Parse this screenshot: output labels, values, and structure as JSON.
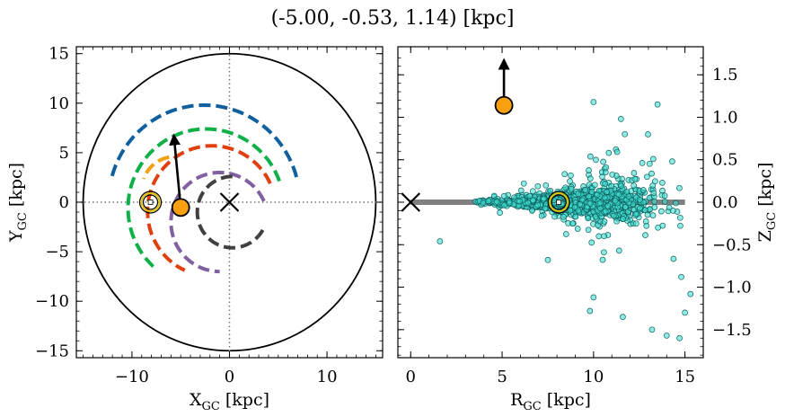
{
  "figure": {
    "title": "(-5.00, -0.53, 1.14) [kpc]"
  },
  "chart_data": [
    {
      "type": "scatter",
      "panel": "left",
      "xlabel_main": "X",
      "xlabel_sub": "GC",
      "xlabel_unit": " [kpc]",
      "ylabel_main": "Y",
      "ylabel_sub": "GC",
      "ylabel_unit": " [kpc]",
      "xlim": [
        -15.7,
        15.7
      ],
      "ylim": [
        -15.7,
        15.7
      ],
      "xticks": [
        -10,
        0,
        10
      ],
      "xtick_labels": [
        "−10",
        "0",
        "10"
      ],
      "yticks": [
        -15,
        -10,
        -5,
        0,
        5,
        10,
        15
      ],
      "ytick_labels": [
        "−15",
        "−10",
        "−5",
        "0",
        "5",
        "10",
        "15"
      ],
      "grid": false,
      "galaxy_circle_radius": 15,
      "crosshair_lines": {
        "x": 0,
        "y": 0
      },
      "galactic_center": {
        "x": 0,
        "y": 0
      },
      "sun": {
        "x": -8.1,
        "y": 0.0
      },
      "object": {
        "x": -5.0,
        "y": -0.53
      },
      "velocity_arrow": {
        "from": [
          -5.0,
          -0.53
        ],
        "to": [
          -5.7,
          6.7
        ]
      },
      "spiral_arms": [
        {
          "color": "#1060a0",
          "center_radius": 9.8,
          "center": [
            -2.6,
            0.0
          ],
          "theta_start_deg": 15,
          "theta_end_deg": 165
        },
        {
          "color": "#10b048",
          "center_radius": 8.0,
          "center": [
            -2.4,
            -0.6
          ],
          "theta_start_deg": 20,
          "theta_end_deg": 230
        },
        {
          "color": "#f0a010",
          "center_radius": 3.4,
          "center": [
            -5.6,
            1.2
          ],
          "theta_start_deg": 100,
          "theta_end_deg": 160
        },
        {
          "color": "#e04010",
          "center_radius": 6.6,
          "center": [
            -1.8,
            -0.9
          ],
          "theta_start_deg": 25,
          "theta_end_deg": 245
        },
        {
          "color": "#8060a0",
          "center_radius": 5.0,
          "center": [
            -1.0,
            -2.0
          ],
          "theta_start_deg": 25,
          "theta_end_deg": 270
        },
        {
          "color": "#404040",
          "center_radius": 3.6,
          "center": [
            0.3,
            -1.0
          ],
          "theta_start_deg": 90,
          "theta_end_deg": 330
        }
      ]
    },
    {
      "type": "scatter",
      "panel": "right",
      "xlabel_main": "R",
      "xlabel_sub": "GC",
      "xlabel_unit": " [kpc]",
      "ylabel_main": "Z",
      "ylabel_sub": "GC",
      "ylabel_unit": " [kpc]",
      "xlim": [
        -0.7,
        16.0
      ],
      "ylim": [
        -1.83,
        1.83
      ],
      "xticks": [
        0,
        5,
        10,
        15
      ],
      "xtick_labels": [
        "0",
        "5",
        "10",
        "15"
      ],
      "yticks": [
        -1.5,
        -1.0,
        -0.5,
        0.0,
        0.5,
        1.0,
        1.5
      ],
      "ytick_labels": [
        "−1.5",
        "−1.0",
        "−0.5",
        "0.0",
        "0.5",
        "1.0",
        "1.5"
      ],
      "grid": false,
      "disk_line": {
        "x": [
          0,
          15
        ],
        "y": 0
      },
      "galactic_center": {
        "x": 0,
        "y": 0
      },
      "sun": {
        "x": 8.1,
        "y": 0.0
      },
      "object": {
        "x": 5.1,
        "y": 1.14
      },
      "velocity_arrow": {
        "from": [
          5.1,
          1.14
        ],
        "to": [
          5.1,
          1.67
        ]
      },
      "star_cloud": {
        "count": 1500,
        "r_range": [
          3.5,
          15.0
        ],
        "z_spread_near": 0.05,
        "z_spread_far": 0.55,
        "color": "#40e0d0",
        "edge_color": "#106060"
      },
      "outliers": [
        {
          "x": 1.6,
          "y": -0.46
        },
        {
          "x": 10.0,
          "y": 1.18
        },
        {
          "x": 11.5,
          "y": 0.98
        },
        {
          "x": 13.5,
          "y": 1.15
        },
        {
          "x": 14.3,
          "y": 0.48
        },
        {
          "x": 14.8,
          "y": -0.88
        },
        {
          "x": 15.3,
          "y": -1.08
        },
        {
          "x": 15.0,
          "y": -1.3
        },
        {
          "x": 14.7,
          "y": -1.6
        },
        {
          "x": 14.0,
          "y": -1.57
        },
        {
          "x": 13.2,
          "y": -1.5
        },
        {
          "x": 11.6,
          "y": -1.35
        },
        {
          "x": 10.0,
          "y": -1.12
        },
        {
          "x": 9.8,
          "y": -1.28
        },
        {
          "x": 7.5,
          "y": -0.68
        }
      ]
    }
  ]
}
